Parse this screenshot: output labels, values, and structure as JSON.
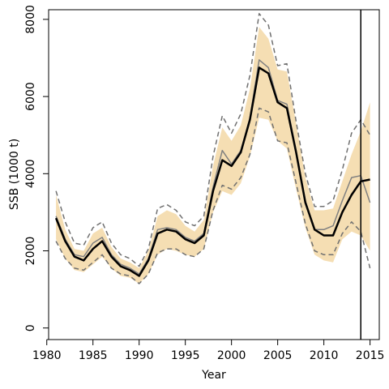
{
  "chart_data": {
    "type": "line",
    "xlabel": "Year",
    "ylabel": "SSB (1000 t)",
    "xlim": [
      1980.2,
      2016.0
    ],
    "ylim": [
      -300,
      8250
    ],
    "x_ticks": [
      1980,
      1985,
      1990,
      1995,
      2000,
      2005,
      2010,
      2015
    ],
    "x_tick_labels": [
      "1980",
      "1985",
      "1990",
      "1995",
      "2000",
      "2005",
      "2010",
      "2015"
    ],
    "y_ticks": [
      0,
      2000,
      4000,
      6000,
      8000
    ],
    "y_tick_labels": [
      "0",
      "2000",
      "4000",
      "6000",
      "8000"
    ],
    "grid": false,
    "legend": "none",
    "vertical_line_x": 2014,
    "x": [
      1981,
      1982,
      1983,
      1984,
      1985,
      1986,
      1987,
      1988,
      1989,
      1990,
      1991,
      1992,
      1993,
      1994,
      1995,
      1996,
      1997,
      1998,
      1999,
      2000,
      2001,
      2002,
      2003,
      2004,
      2005,
      2006,
      2007,
      2008,
      2009,
      2010,
      2011,
      2012,
      2013,
      2014,
      2015
    ],
    "series": [
      {
        "role": "ci-band",
        "color": "#f5deb3",
        "x": [
          1981,
          1982,
          1983,
          1984,
          1985,
          1986,
          1987,
          1988,
          1989,
          1990,
          1991,
          1992,
          1993,
          1994,
          1995,
          1996,
          1997,
          1998,
          1999,
          2000,
          2001,
          2002,
          2003,
          2004,
          2005,
          2006,
          2007,
          2008,
          2009,
          2010,
          2011,
          2012,
          2013,
          2014,
          2015
        ],
        "upper": [
          3450,
          2550,
          2050,
          2000,
          2450,
          2600,
          2100,
          1800,
          1700,
          1550,
          2000,
          2900,
          3050,
          2950,
          2650,
          2500,
          2800,
          4200,
          5200,
          4850,
          5250,
          6200,
          7800,
          7500,
          6700,
          6650,
          5300,
          3900,
          3050,
          3050,
          3100,
          3800,
          4500,
          5100,
          5850
        ],
        "lower": [
          2300,
          1800,
          1500,
          1450,
          1650,
          1850,
          1550,
          1350,
          1300,
          1150,
          1400,
          1900,
          2050,
          2000,
          1900,
          1850,
          2050,
          3000,
          3550,
          3450,
          3750,
          4450,
          5450,
          5400,
          4850,
          4650,
          3600,
          2600,
          1900,
          1750,
          1700,
          2300,
          2500,
          2400,
          2000
        ]
      },
      {
        "role": "upper-dashed",
        "color": "#707070",
        "x": [
          1981,
          1982,
          1983,
          1984,
          1985,
          1986,
          1987,
          1988,
          1989,
          1990,
          1991,
          1992,
          1993,
          1994,
          1995,
          1996,
          1997,
          1998,
          1999,
          2000,
          2001,
          2002,
          2003,
          2004,
          2005,
          2006,
          2007,
          2008,
          2009,
          2010,
          2011,
          2012,
          2013,
          2014,
          2015
        ],
        "values": [
          3550,
          2750,
          2200,
          2150,
          2600,
          2750,
          2200,
          1900,
          1800,
          1600,
          2050,
          3100,
          3200,
          3050,
          2750,
          2650,
          2900,
          4450,
          5500,
          5050,
          5550,
          6550,
          8150,
          7850,
          6800,
          6850,
          5350,
          4000,
          3150,
          3150,
          3300,
          4100,
          5050,
          5400,
          5000
        ]
      },
      {
        "role": "lower-dashed",
        "color": "#707070",
        "x": [
          1981,
          1982,
          1983,
          1984,
          1985,
          1986,
          1987,
          1988,
          1989,
          1990,
          1991,
          1992,
          1993,
          1994,
          1995,
          1996,
          1997,
          1998,
          1999,
          2000,
          2001,
          2002,
          2003,
          2004,
          2005,
          2006,
          2007,
          2008,
          2009,
          2010,
          2011,
          2012,
          2013,
          2014,
          2015
        ],
        "values": [
          2250,
          1800,
          1550,
          1500,
          1700,
          1900,
          1550,
          1400,
          1350,
          1150,
          1400,
          1950,
          2050,
          2050,
          1900,
          1850,
          2050,
          3050,
          3700,
          3600,
          3900,
          4500,
          5700,
          5600,
          4850,
          4800,
          3750,
          2700,
          2000,
          1900,
          1900,
          2450,
          2750,
          2500,
          1550
        ]
      },
      {
        "role": "gray-estimate",
        "color": "#808080",
        "x": [
          1981,
          1982,
          1983,
          1984,
          1985,
          1986,
          1987,
          1988,
          1989,
          1990,
          1991,
          1992,
          1993,
          1994,
          1995,
          1996,
          1997,
          1998,
          1999,
          2000,
          2001,
          2002,
          2003,
          2004,
          2005,
          2006,
          2007,
          2008,
          2009,
          2010,
          2011,
          2012,
          2013,
          2014,
          2015
        ],
        "values": [
          2900,
          2300,
          1900,
          1850,
          2200,
          2350,
          1900,
          1650,
          1550,
          1400,
          1800,
          2550,
          2600,
          2550,
          2350,
          2250,
          2450,
          3650,
          4600,
          4250,
          4600,
          5450,
          6950,
          6750,
          5900,
          5800,
          4600,
          3300,
          2550,
          2550,
          2650,
          3300,
          3900,
          3950,
          3250
        ]
      },
      {
        "role": "main-estimate",
        "color": "#000000",
        "x": [
          1981,
          1982,
          1983,
          1984,
          1985,
          1986,
          1987,
          1988,
          1989,
          1990,
          1991,
          1992,
          1993,
          1994,
          1995,
          1996,
          1997,
          1998,
          1999,
          2000,
          2001,
          2002,
          2003,
          2004,
          2005,
          2006,
          2007,
          2008,
          2009,
          2010,
          2011,
          2012,
          2013,
          2014,
          2015
        ],
        "values": [
          2850,
          2250,
          1850,
          1750,
          2050,
          2250,
          1850,
          1600,
          1500,
          1350,
          1750,
          2450,
          2550,
          2500,
          2300,
          2200,
          2400,
          3550,
          4350,
          4200,
          4550,
          5400,
          6750,
          6600,
          5850,
          5700,
          4550,
          3250,
          2550,
          2400,
          2400,
          3000,
          3450,
          3800,
          3850
        ]
      }
    ]
  }
}
